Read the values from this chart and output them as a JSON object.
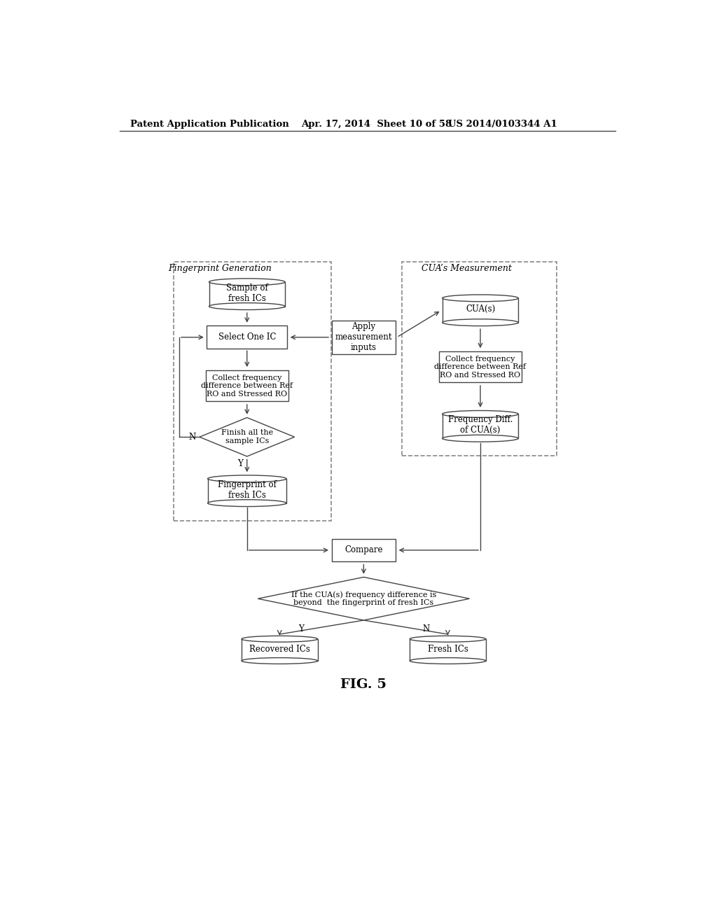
{
  "bg_color": "#ffffff",
  "header_left": "Patent Application Publication",
  "header_mid": "Apr. 17, 2014  Sheet 10 of 58",
  "header_right": "US 2014/0103344 A1",
  "fig_label": "FIG. 5",
  "left_box_title": "Fingerprint Generation",
  "right_box_title": "CUA’s Measurement",
  "line_color": "#444444",
  "dash_color": "#888888"
}
